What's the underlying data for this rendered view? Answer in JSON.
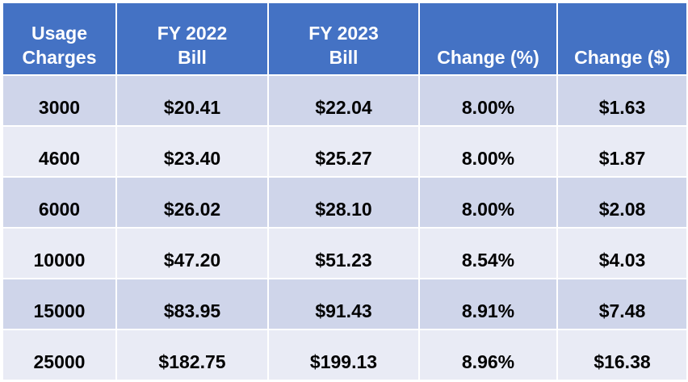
{
  "table": {
    "headers": [
      {
        "line1": "Usage",
        "line2": "Charges"
      },
      {
        "line1": "FY 2022",
        "line2": "Bill"
      },
      {
        "line1": "FY 2023",
        "line2": "Bill"
      },
      {
        "line1": "",
        "line2": "Change (%)"
      },
      {
        "line1": "",
        "line2": "Change ($)"
      }
    ],
    "rows": [
      [
        "3000",
        "$20.41",
        "$22.04",
        "8.00%",
        "$1.63"
      ],
      [
        "4600",
        "$23.40",
        "$25.27",
        "8.00%",
        "$1.87"
      ],
      [
        "6000",
        "$26.02",
        "$28.10",
        "8.00%",
        "$2.08"
      ],
      [
        "10000",
        "$47.20",
        "$51.23",
        "8.54%",
        "$4.03"
      ],
      [
        "15000",
        "$83.95",
        "$91.43",
        "8.91%",
        "$7.48"
      ],
      [
        "25000",
        "$182.75",
        "$199.13",
        "8.96%",
        "$16.38"
      ]
    ]
  },
  "colors": {
    "header_bg": "#4472c4",
    "row_dark": "#cfd5ea",
    "row_light": "#e9ebf5"
  }
}
